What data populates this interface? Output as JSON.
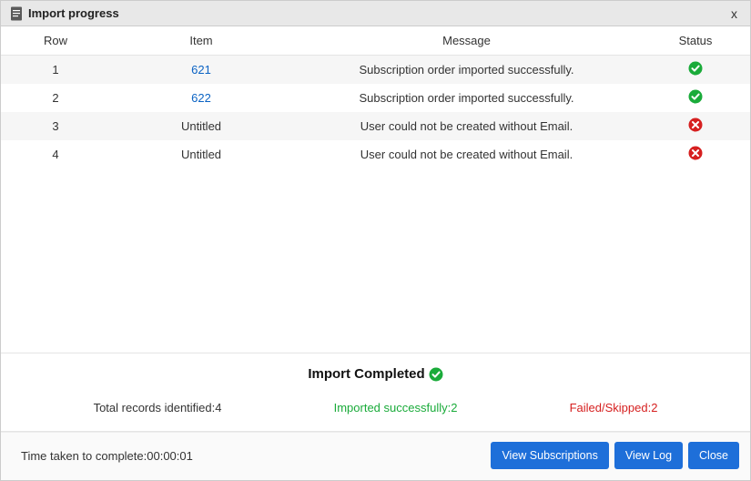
{
  "window": {
    "title": "Import progress",
    "close_label": "x"
  },
  "colors": {
    "success": "#1aab3a",
    "error": "#d62020",
    "link": "#0b63c4",
    "button_bg": "#1e6fd9",
    "titlebar_bg": "#e8e8e8"
  },
  "table": {
    "headers": {
      "row": "Row",
      "item": "Item",
      "message": "Message",
      "status": "Status"
    },
    "rows": [
      {
        "row": "1",
        "item": "621",
        "item_is_link": true,
        "message": "Subscription order imported successfully.",
        "status": "success"
      },
      {
        "row": "2",
        "item": "622",
        "item_is_link": true,
        "message": "Subscription order imported successfully.",
        "status": "success"
      },
      {
        "row": "3",
        "item": "Untitled",
        "item_is_link": false,
        "message": "User could not be created without Email.",
        "status": "error"
      },
      {
        "row": "4",
        "item": "Untitled",
        "item_is_link": false,
        "message": "User could not be created without Email.",
        "status": "error"
      }
    ]
  },
  "summary": {
    "title": "Import Completed",
    "total_label": "Total records identified:",
    "total_value": "4",
    "ok_label": "Imported successfully:",
    "ok_value": "2",
    "fail_label": "Failed/Skipped:",
    "fail_value": "2"
  },
  "footer": {
    "time_label": "Time taken to complete:",
    "time_value": "00:00:01",
    "buttons": {
      "view_subscriptions": "View Subscriptions",
      "view_log": "View Log",
      "close": "Close"
    }
  }
}
